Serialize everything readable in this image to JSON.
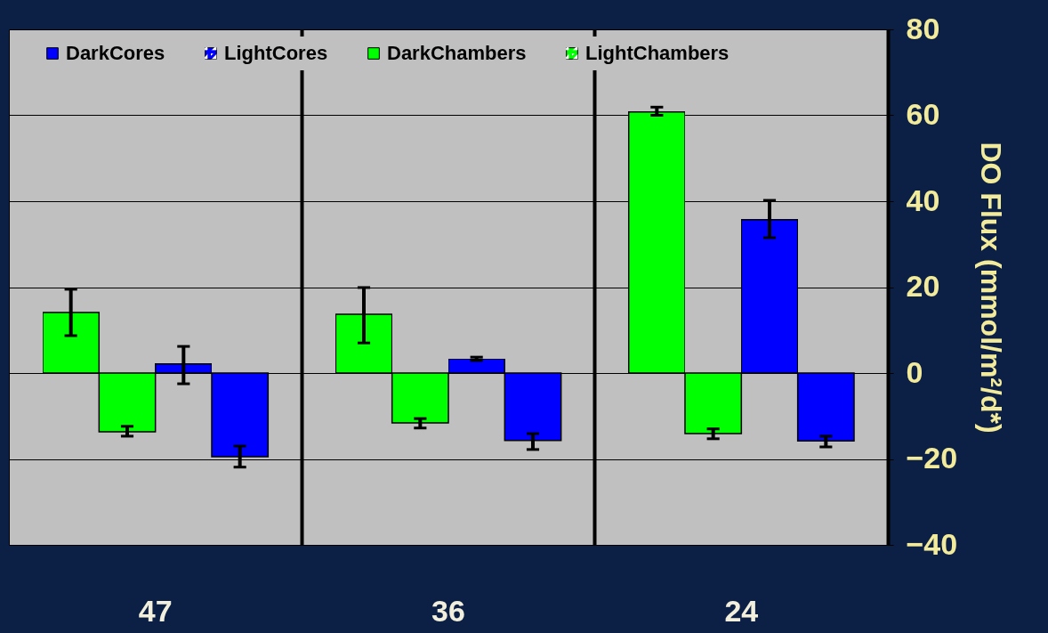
{
  "chart_data": {
    "type": "bar",
    "ylabel": "DO Flux (mmol/m²/d*)",
    "categories": [
      "47",
      "36",
      "24"
    ],
    "series": [
      {
        "name": "DarkCores",
        "color": "#0000ff",
        "values": [
          -19.5,
          -15.7,
          -15.8
        ],
        "errors": [
          [
            -21.9,
            -17.0
          ],
          [
            -17.8,
            -14.1
          ],
          [
            -17.2,
            -14.7
          ]
        ]
      },
      {
        "name": "LightCores",
        "color": "#0000ff",
        "values": [
          2.1,
          3.3,
          35.7
        ],
        "errors": [
          [
            -2.5,
            6.2
          ],
          [
            2.9,
            3.7
          ],
          [
            31.5,
            40.2
          ]
        ]
      },
      {
        "name": "DarkChambers",
        "color": "#00ff00",
        "values": [
          -13.7,
          -11.6,
          -14.1
        ],
        "errors": [
          [
            -14.7,
            -12.4
          ],
          [
            -12.8,
            -10.6
          ],
          [
            -15.3,
            -13.0
          ]
        ]
      },
      {
        "name": "LightChambers",
        "color": "#00ff00",
        "values": [
          14.1,
          13.7,
          60.8
        ],
        "errors": [
          [
            8.7,
            19.5
          ],
          [
            7.0,
            19.9
          ],
          [
            60.0,
            61.9
          ]
        ]
      }
    ],
    "ylim": [
      -40,
      80
    ],
    "yticks": [
      -40,
      -20,
      0,
      20,
      40,
      60,
      80
    ],
    "grid": true,
    "legend": "top"
  }
}
